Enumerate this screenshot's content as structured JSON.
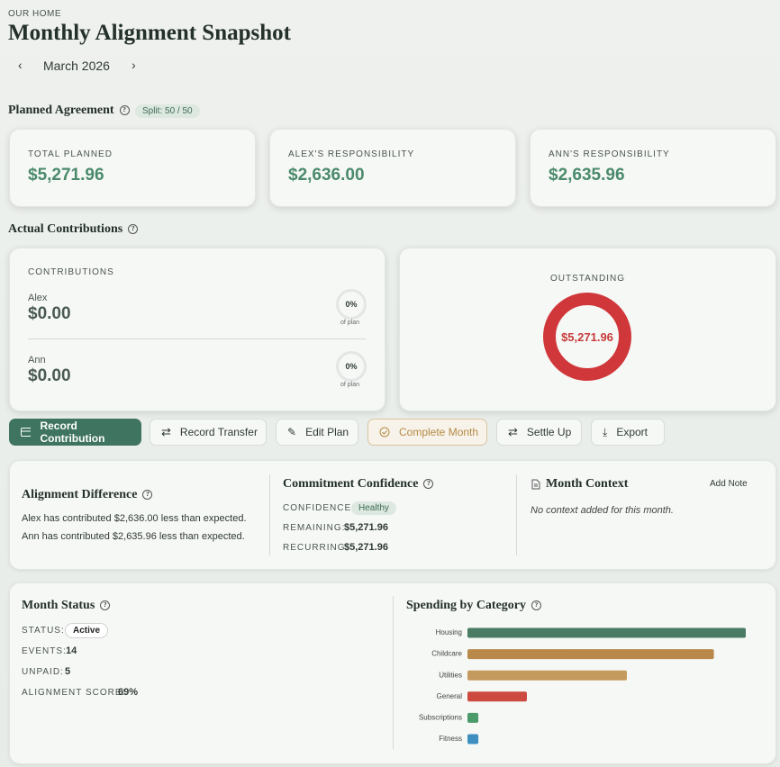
{
  "header": {
    "eyebrow": "OUR HOME",
    "title": "Monthly Alignment Snapshot",
    "month": "March 2026"
  },
  "planned": {
    "title": "Planned Agreement",
    "split": "Split: 50 / 50",
    "cards": [
      {
        "label": "TOTAL PLANNED",
        "value": "$5,271.96"
      },
      {
        "label": "ALEX'S RESPONSIBILITY",
        "value": "$2,636.00"
      },
      {
        "label": "ANN'S RESPONSIBILITY",
        "value": "$2,635.96"
      }
    ]
  },
  "actual": {
    "title": "Actual Contributions",
    "contributions": {
      "label": "CONTRIBUTIONS",
      "people": [
        {
          "name": "Alex",
          "amount": "$0.00",
          "percent": "0%",
          "note": "of plan"
        },
        {
          "name": "Ann",
          "amount": "$0.00",
          "percent": "0%",
          "note": "of plan"
        }
      ]
    },
    "outstanding": {
      "label": "OUTSTANDING",
      "value": "$5,271.96"
    }
  },
  "actions": [
    "Record Contribution",
    "Record Transfer",
    "Edit Plan",
    "Complete Month",
    "Settle Up",
    "Export"
  ],
  "alignment": {
    "title": "Alignment Difference",
    "lines": [
      "Alex has contributed $2,636.00 less than expected.",
      "Ann has contributed $2,635.96 less than expected."
    ]
  },
  "confidence": {
    "title": "Commitment Confidence",
    "rows": [
      {
        "label": "CONFIDENCE:",
        "value": "Healthy"
      },
      {
        "label": "REMAINING:",
        "value": "$5,271.96"
      },
      {
        "label": "RECURRING:",
        "value": "$5,271.96"
      }
    ]
  },
  "context": {
    "title": "Month Context",
    "action": "Add Note",
    "empty": "No context added for this month."
  },
  "status": {
    "title": "Month Status",
    "rows": [
      {
        "label": "STATUS:",
        "value": "Active"
      },
      {
        "label": "EVENTS:",
        "value": "14"
      },
      {
        "label": "UNPAID:",
        "value": "5"
      },
      {
        "label": "ALIGNMENT SCORE:",
        "value": "69%"
      }
    ]
  },
  "spending": {
    "title": "Spending by Category",
    "categories": [
      "Housing",
      "Childcare",
      "Utilities",
      "General",
      "Subscriptions",
      "Fitness"
    ],
    "values": [
      1920,
      1700,
      1100,
      410,
      75,
      75
    ],
    "colors": [
      "#4a7c64",
      "#b8894a",
      "#c49a5e",
      "#cc4a3f",
      "#4a9a6a",
      "#3e8fc0"
    ]
  }
}
